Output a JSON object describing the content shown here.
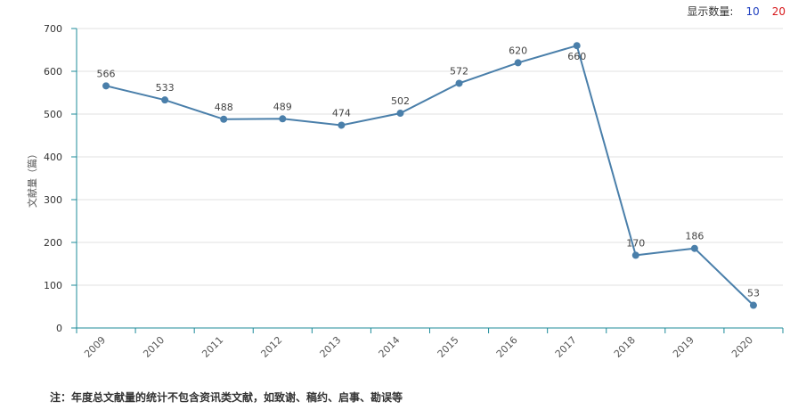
{
  "display_count": {
    "label": "显示数量:",
    "option_10": "10",
    "option_20": "20"
  },
  "footnote": "注：年度总文献量的统计不包含资讯类文献，如致谢、稿约、启事、勘误等",
  "colors": {
    "line": "#4a7faa",
    "axis": "#1c8b9a",
    "grid": "#e0e0e0"
  },
  "chart_data": {
    "type": "line",
    "title": "",
    "xlabel": "",
    "ylabel": "文献量（篇）",
    "ylim": [
      0,
      700
    ],
    "yticks": [
      0,
      100,
      200,
      300,
      400,
      500,
      600,
      700
    ],
    "categories": [
      "2009",
      "2010",
      "2011",
      "2012",
      "2013",
      "2014",
      "2015",
      "2016",
      "2017",
      "2018",
      "2019",
      "2020"
    ],
    "series": [
      {
        "values": [
          566,
          533,
          488,
          489,
          474,
          502,
          572,
          620,
          660,
          170,
          186,
          53
        ]
      }
    ],
    "data_labels": [
      "566",
      "533",
      "488",
      "489",
      "474",
      "502",
      "572",
      "620",
      "660",
      "170",
      "186",
      "53"
    ],
    "grid": true
  }
}
